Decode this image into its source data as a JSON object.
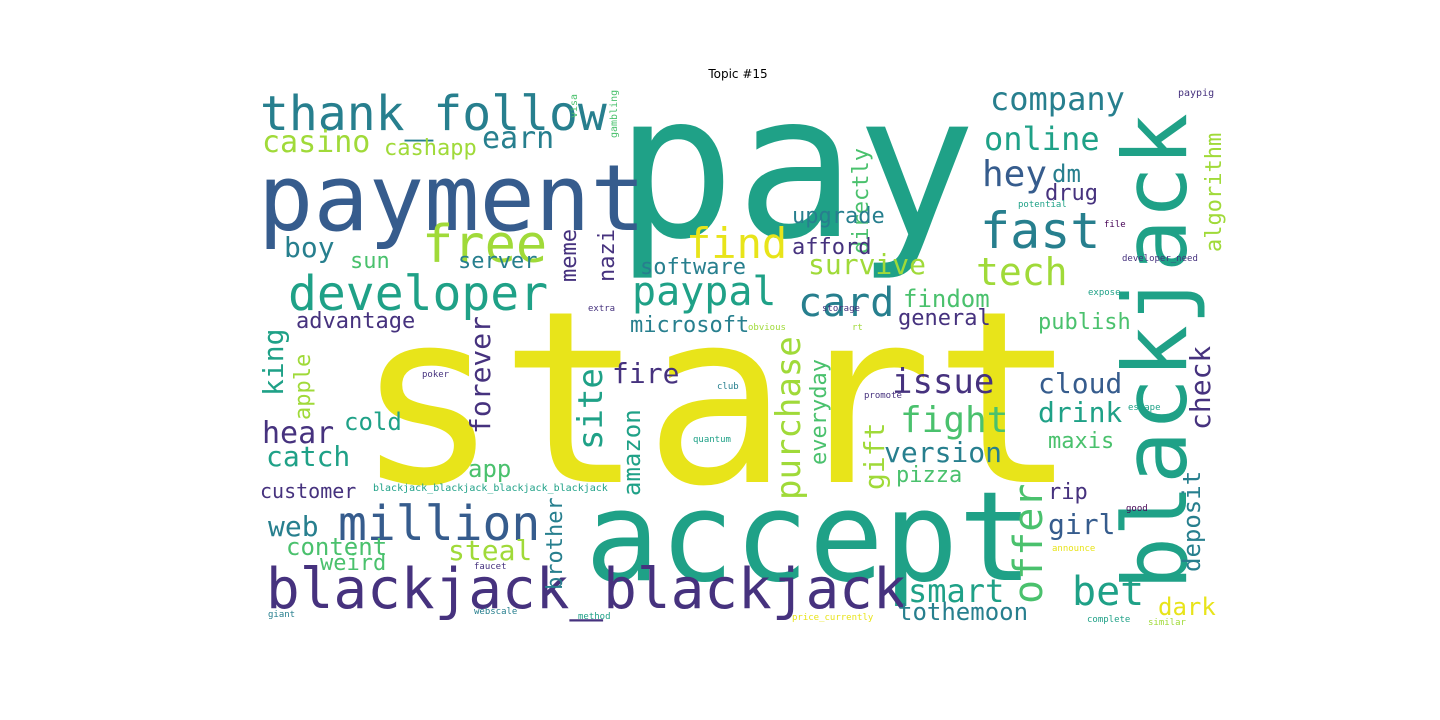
{
  "title": "Topic #15",
  "colors": {
    "yellow": "#e8e41a",
    "lime": "#a0da39",
    "green": "#4ac16d",
    "teal_green": "#1fa187",
    "teal": "#277f8e",
    "blue": "#365c8d",
    "indigo": "#46327e",
    "purple": "#440154"
  },
  "words": [
    {
      "text": "start",
      "color": "yellow"
    },
    {
      "text": "pay",
      "color": "teal_green"
    },
    {
      "text": "accept",
      "color": "teal_green"
    },
    {
      "text": "payment",
      "color": "blue"
    },
    {
      "text": "blackjack",
      "color": "teal_green"
    },
    {
      "text": "blackjack_blackjack",
      "color": "indigo"
    },
    {
      "text": "thank_follow",
      "color": "teal"
    },
    {
      "text": "developer",
      "color": "teal_green"
    },
    {
      "text": "million",
      "color": "blue"
    },
    {
      "text": "free",
      "color": "lime"
    },
    {
      "text": "fast",
      "color": "teal"
    },
    {
      "text": "find",
      "color": "yellow"
    },
    {
      "text": "company",
      "color": "teal"
    },
    {
      "text": "online",
      "color": "teal_green"
    },
    {
      "text": "tech",
      "color": "lime"
    },
    {
      "text": "paypal",
      "color": "teal_green"
    },
    {
      "text": "card",
      "color": "teal"
    },
    {
      "text": "casino",
      "color": "lime"
    },
    {
      "text": "cashapp",
      "color": "lime"
    },
    {
      "text": "earn",
      "color": "teal"
    },
    {
      "text": "hey",
      "color": "blue"
    },
    {
      "text": "dm",
      "color": "teal"
    },
    {
      "text": "drug",
      "color": "indigo"
    },
    {
      "text": "algorithm",
      "color": "lime"
    },
    {
      "text": "check",
      "color": "indigo"
    },
    {
      "text": "boy",
      "color": "teal"
    },
    {
      "text": "sun",
      "color": "green"
    },
    {
      "text": "server",
      "color": "teal"
    },
    {
      "text": "meme",
      "color": "indigo"
    },
    {
      "text": "nazi",
      "color": "indigo"
    },
    {
      "text": "directly",
      "color": "green"
    },
    {
      "text": "upgrade",
      "color": "teal"
    },
    {
      "text": "afford",
      "color": "indigo"
    },
    {
      "text": "software",
      "color": "teal"
    },
    {
      "text": "survive",
      "color": "lime"
    },
    {
      "text": "findom",
      "color": "green"
    },
    {
      "text": "general",
      "color": "indigo"
    },
    {
      "text": "publish",
      "color": "green"
    },
    {
      "text": "microsoft",
      "color": "teal"
    },
    {
      "text": "advantage",
      "color": "indigo"
    },
    {
      "text": "king",
      "color": "teal_green"
    },
    {
      "text": "apple",
      "color": "lime"
    },
    {
      "text": "forever",
      "color": "indigo"
    },
    {
      "text": "site",
      "color": "teal_green"
    },
    {
      "text": "purchase",
      "color": "lime"
    },
    {
      "text": "everyday",
      "color": "green"
    },
    {
      "text": "issue",
      "color": "indigo"
    },
    {
      "text": "fire",
      "color": "indigo"
    },
    {
      "text": "cloud",
      "color": "blue"
    },
    {
      "text": "fight",
      "color": "green"
    },
    {
      "text": "drink",
      "color": "teal_green"
    },
    {
      "text": "hear",
      "color": "indigo"
    },
    {
      "text": "cold",
      "color": "teal_green"
    },
    {
      "text": "amazon",
      "color": "teal_green"
    },
    {
      "text": "gift",
      "color": "lime"
    },
    {
      "text": "version",
      "color": "teal"
    },
    {
      "text": "maxis",
      "color": "green"
    },
    {
      "text": "catch",
      "color": "teal_green"
    },
    {
      "text": "app",
      "color": "green"
    },
    {
      "text": "pizza",
      "color": "green"
    },
    {
      "text": "deposit",
      "color": "teal"
    },
    {
      "text": "offer",
      "color": "green"
    },
    {
      "text": "customer",
      "color": "indigo"
    },
    {
      "text": "rip",
      "color": "indigo"
    },
    {
      "text": "web",
      "color": "teal"
    },
    {
      "text": "girl",
      "color": "blue"
    },
    {
      "text": "content",
      "color": "green"
    },
    {
      "text": "steal",
      "color": "lime"
    },
    {
      "text": "brother",
      "color": "teal"
    },
    {
      "text": "weird",
      "color": "green"
    },
    {
      "text": "smart",
      "color": "teal_green"
    },
    {
      "text": "bet",
      "color": "teal_green"
    },
    {
      "text": "dark",
      "color": "yellow"
    },
    {
      "text": "tothemoon",
      "color": "teal"
    },
    {
      "text": "blackjack_blackjack_blackjack_blackjack",
      "color": "teal_green"
    },
    {
      "text": "visa",
      "color": "green"
    },
    {
      "text": "gambling",
      "color": "green"
    },
    {
      "text": "paypig",
      "color": "indigo"
    },
    {
      "text": "potential",
      "color": "teal_green"
    },
    {
      "text": "file",
      "color": "purple"
    },
    {
      "text": "developer_need",
      "color": "indigo"
    },
    {
      "text": "extra",
      "color": "indigo"
    },
    {
      "text": "storage",
      "color": "indigo"
    },
    {
      "text": "obvious",
      "color": "lime"
    },
    {
      "text": "rt",
      "color": "lime"
    },
    {
      "text": "expose",
      "color": "teal_green"
    },
    {
      "text": "poker",
      "color": "indigo"
    },
    {
      "text": "club",
      "color": "teal"
    },
    {
      "text": "promote",
      "color": "indigo"
    },
    {
      "text": "escape",
      "color": "teal_green"
    },
    {
      "text": "quantum",
      "color": "teal_green"
    },
    {
      "text": "good",
      "color": "purple"
    },
    {
      "text": "announce",
      "color": "yellow"
    },
    {
      "text": "faucet",
      "color": "indigo"
    },
    {
      "text": "giant",
      "color": "teal"
    },
    {
      "text": "webscale",
      "color": "teal"
    },
    {
      "text": "method",
      "color": "teal_green"
    },
    {
      "text": "price_currently",
      "color": "yellow"
    },
    {
      "text": "complete",
      "color": "teal_green"
    },
    {
      "text": "similar",
      "color": "lime"
    }
  ]
}
